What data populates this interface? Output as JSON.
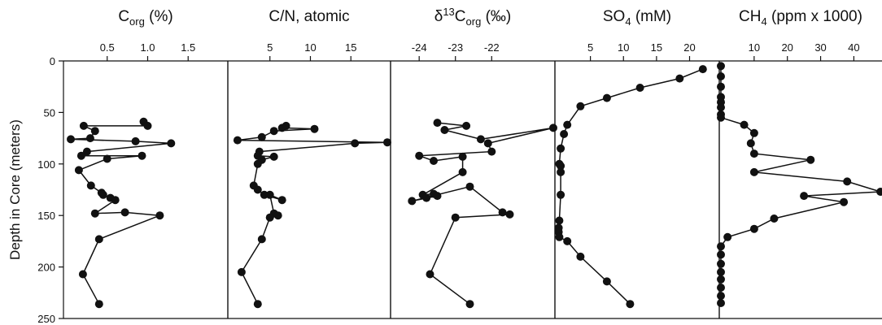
{
  "chart_data": {
    "type": "scatter",
    "ylabel": "Depth in Core (meters)",
    "ylim": [
      0,
      250
    ],
    "yticks": [
      "0",
      "50",
      "100",
      "150",
      "200",
      "250"
    ],
    "y_inverted": true,
    "marker": "filled-circle-connected",
    "color": "#111111",
    "panels": [
      {
        "title": {
          "pre": "C",
          "sub": "org",
          "post": " (%)"
        },
        "xlim": [
          0,
          1.95
        ],
        "xticks": [
          "0.5",
          "1.0",
          "1.5"
        ],
        "x": [
          0.95,
          1.0,
          0.21,
          0.35,
          0.29,
          0.05,
          0.85,
          1.29,
          0.25,
          0.18,
          0.93,
          0.5,
          0.15,
          0.3,
          0.43,
          0.45,
          0.54,
          0.6,
          0.35,
          0.72,
          1.15,
          0.4,
          0.2,
          0.4
        ],
        "y": [
          59,
          63,
          63,
          68,
          75,
          76,
          78,
          80,
          88,
          92,
          92,
          95,
          106,
          121,
          128,
          130,
          133,
          135,
          148,
          147,
          150,
          173,
          207,
          236
        ]
      },
      {
        "title": {
          "pre": "C/N, atomic",
          "sub": "",
          "post": ""
        },
        "xlim": [
          0,
          19.5
        ],
        "xticks": [
          "5",
          "10",
          "15"
        ],
        "x": [
          7.0,
          6.5,
          10.5,
          5.5,
          4.0,
          1.0,
          19.5,
          15.5,
          3.7,
          3.5,
          5.5,
          4.0,
          3.5,
          3.0,
          3.5,
          4.3,
          6.5,
          5.0,
          5.5,
          6.0,
          5.0,
          4.0,
          1.5,
          3.5
        ],
        "y": [
          63,
          65,
          66,
          68,
          74,
          77,
          79,
          80,
          88,
          92,
          93,
          96,
          100,
          121,
          125,
          130,
          135,
          130,
          148,
          150,
          152,
          173,
          205,
          236
        ]
      },
      {
        "title": {
          "pre": "δ",
          "sup": "13",
          "mid": "C",
          "sub": "org",
          "post": " (‰)"
        },
        "xlim": [
          -24.7,
          -20.3
        ],
        "xticks": [
          "-24",
          "-23",
          "-22"
        ],
        "x": [
          -23.5,
          -22.7,
          -23.3,
          -22.3,
          -20.3,
          -22.1,
          -22.0,
          -24.0,
          -23.6,
          -22.8,
          -22.8,
          -23.9,
          -23.6,
          -23.8,
          -23.5,
          -24.2,
          -22.6,
          -21.7,
          -21.5,
          -23.0,
          -23.7,
          -22.6
        ],
        "y": [
          60,
          63,
          67,
          76,
          65,
          80,
          88,
          92,
          97,
          93,
          108,
          130,
          129,
          133,
          131,
          136,
          122,
          147,
          149,
          152,
          207,
          236
        ]
      },
      {
        "title": {
          "pre": "SO",
          "sub": "4",
          "post": " (mM)"
        },
        "xlim": [
          0,
          24
        ],
        "xticks": [
          "5",
          "10",
          "15",
          "20"
        ],
        "x": [
          22.0,
          18.5,
          12.5,
          7.5,
          3.5,
          1.5,
          1.0,
          0.5,
          0.3,
          0.5,
          0.5,
          0.5,
          0.3,
          0.2,
          0.2,
          0.3,
          1.5,
          3.5,
          7.5,
          11.0
        ],
        "y": [
          8,
          17,
          26,
          36,
          44,
          62,
          71,
          85,
          100,
          102,
          108,
          130,
          155,
          162,
          166,
          171,
          175,
          190,
          214,
          236
        ]
      },
      {
        "title": {
          "pre": "CH",
          "sub": "4",
          "post": " (ppm x 1000)"
        },
        "xlim": [
          0,
          47
        ],
        "xticks": [
          "10",
          "20",
          "30",
          "40"
        ],
        "x": [
          0,
          0,
          0,
          0,
          0,
          0,
          0,
          0,
          7,
          10,
          9,
          10,
          27,
          10,
          38,
          48,
          25,
          37,
          16,
          10,
          2,
          0,
          0,
          0,
          0,
          0,
          0,
          0,
          0
        ],
        "y": [
          5,
          15,
          25,
          35,
          40,
          45,
          52,
          55,
          62,
          70,
          80,
          90,
          96,
          108,
          117,
          127,
          131,
          137,
          153,
          163,
          171,
          180,
          188,
          197,
          205,
          212,
          220,
          228,
          235
        ]
      }
    ]
  }
}
